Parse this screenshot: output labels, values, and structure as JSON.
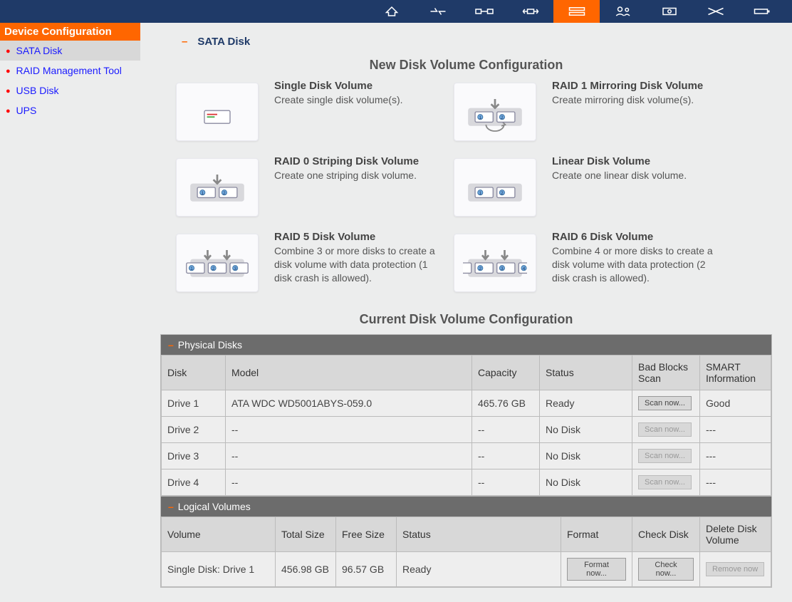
{
  "colors": {
    "topbar": "#1f3a68",
    "accent": "#ff6600",
    "sidebar_bg": "#eceded",
    "link": "#1a1aff",
    "panel_header": "#6c6c6c",
    "good": "#2a9a2a"
  },
  "sidebar": {
    "header": "Device Configuration",
    "items": [
      {
        "label": "SATA Disk",
        "active": true
      },
      {
        "label": "RAID Management Tool",
        "active": false
      },
      {
        "label": "USB Disk",
        "active": false
      },
      {
        "label": "UPS",
        "active": false
      }
    ]
  },
  "breadcrumb": "SATA Disk",
  "new_config": {
    "title": "New Disk Volume Configuration",
    "options": [
      {
        "title": "Single Disk Volume",
        "desc": "Create single disk volume(s)."
      },
      {
        "title": "RAID 1 Mirroring Disk Volume",
        "desc": "Create mirroring disk volume(s)."
      },
      {
        "title": "RAID 0 Striping Disk Volume",
        "desc": "Create one striping disk volume."
      },
      {
        "title": "Linear Disk Volume",
        "desc": "Create one linear disk volume."
      },
      {
        "title": "RAID 5 Disk Volume",
        "desc": "Combine 3 or more disks to create a disk volume with data protection (1 disk crash is allowed)."
      },
      {
        "title": "RAID 6 Disk Volume",
        "desc": "Combine 4 or more disks to create a disk volume with data protection (2 disk crash is allowed)."
      }
    ]
  },
  "current_config": {
    "title": "Current Disk Volume Configuration",
    "physical": {
      "header": "Physical Disks",
      "columns": [
        "Disk",
        "Model",
        "Capacity",
        "Status",
        "Bad Blocks Scan",
        "SMART Information"
      ],
      "scan_label": "Scan now...",
      "rows": [
        {
          "disk": "Drive 1",
          "model": "ATA WDC WD5001ABYS-059.0",
          "capacity": "465.76 GB",
          "status": "Ready",
          "scan_enabled": true,
          "smart": "Good",
          "smart_good": true
        },
        {
          "disk": "Drive 2",
          "model": "--",
          "capacity": "--",
          "status": "No Disk",
          "scan_enabled": false,
          "smart": "---",
          "smart_good": false
        },
        {
          "disk": "Drive 3",
          "model": "--",
          "capacity": "--",
          "status": "No Disk",
          "scan_enabled": false,
          "smart": "---",
          "smart_good": false
        },
        {
          "disk": "Drive 4",
          "model": "--",
          "capacity": "--",
          "status": "No Disk",
          "scan_enabled": false,
          "smart": "---",
          "smart_good": false
        }
      ]
    },
    "logical": {
      "header": "Logical Volumes",
      "columns": [
        "Volume",
        "Total Size",
        "Free Size",
        "Status",
        "Format",
        "Check Disk",
        "Delete Disk Volume"
      ],
      "format_label": "Format now...",
      "check_label": "Check now...",
      "remove_label": "Remove now",
      "rows": [
        {
          "volume": "Single Disk: Drive 1",
          "total": "456.98 GB",
          "free": "96.57 GB",
          "status": "Ready",
          "remove_enabled": false
        }
      ]
    }
  }
}
